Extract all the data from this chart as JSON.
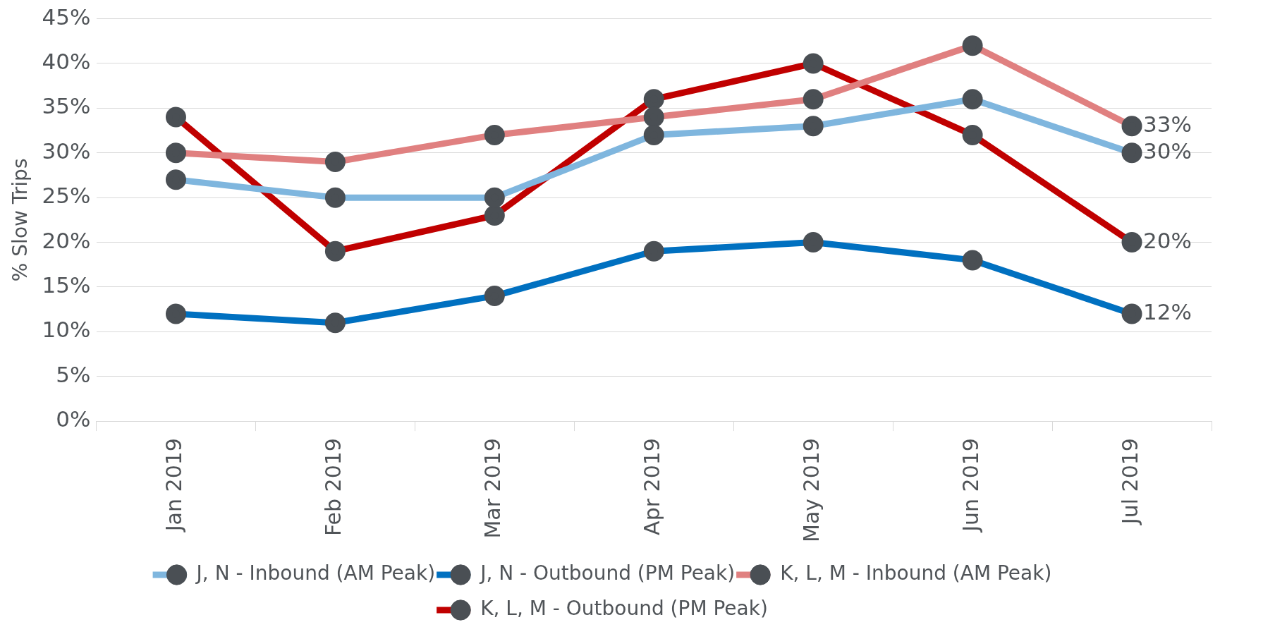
{
  "chart_data": {
    "type": "line",
    "ylabel": "% Slow Trips",
    "categories": [
      "Jan 2019",
      "Feb 2019",
      "Mar 2019",
      "Apr 2019",
      "May 2019",
      "Jun 2019",
      "Jul 2019"
    ],
    "series": [
      {
        "name": "J, N - Inbound (AM Peak)",
        "color": "#7fb6de",
        "values": [
          27,
          25,
          25,
          32,
          33,
          36,
          30
        ],
        "value_labels": [
          null,
          null,
          null,
          null,
          null,
          null,
          "30%"
        ]
      },
      {
        "name": "J, N - Outbound (PM Peak)",
        "color": "#0070c0",
        "values": [
          12,
          11,
          14,
          19,
          20,
          18,
          12
        ],
        "value_labels": [
          null,
          null,
          null,
          null,
          null,
          null,
          "12%"
        ]
      },
      {
        "name": "K, L, M - Inbound (AM Peak)",
        "color": "#e08080",
        "values": [
          30,
          29,
          32,
          34,
          36,
          42,
          33
        ],
        "value_labels": [
          null,
          null,
          null,
          null,
          null,
          null,
          "33%"
        ]
      },
      {
        "name": "K, L, M - Outbound (PM Peak)",
        "color": "#c00000",
        "values": [
          34,
          19,
          23,
          36,
          40,
          32,
          20
        ],
        "value_labels": [
          null,
          null,
          null,
          null,
          null,
          null,
          "20%"
        ]
      }
    ],
    "ylim": [
      0,
      45
    ],
    "yticks": [
      {
        "value": 0,
        "label": "0%"
      },
      {
        "value": 5,
        "label": "5%"
      },
      {
        "value": 10,
        "label": "10%"
      },
      {
        "value": 15,
        "label": "15%"
      },
      {
        "value": 20,
        "label": "20%"
      },
      {
        "value": 25,
        "label": "25%"
      },
      {
        "value": 30,
        "label": "30%"
      },
      {
        "value": 35,
        "label": "35%"
      },
      {
        "value": 40,
        "label": "40%"
      },
      {
        "value": 45,
        "label": "45%"
      }
    ],
    "grid": "y",
    "legend": "bottom",
    "marker": "circle",
    "line_style": "solid"
  }
}
